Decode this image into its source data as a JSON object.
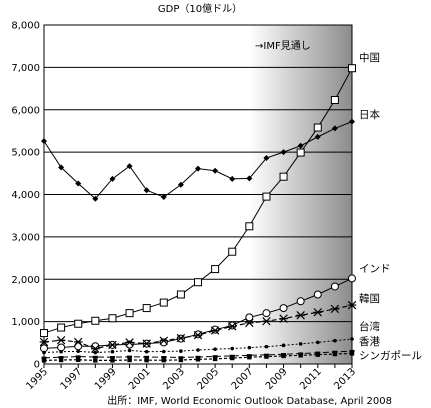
{
  "chart_data": {
    "type": "line",
    "title": "GDP（10億ドル）",
    "source": "出所：IMF, World Economic Outlook Database, April 2008",
    "forecast_label": "→IMF見通し",
    "forecast_start": 2007,
    "ylim": [
      0,
      8000
    ],
    "yticks": [
      0,
      1000,
      2000,
      3000,
      4000,
      5000,
      6000,
      7000,
      8000
    ],
    "ytick_labels": [
      "0",
      "1,000",
      "2,000",
      "3,000",
      "4,000",
      "5,000",
      "6,000",
      "7,000",
      "8,000"
    ],
    "xlim": [
      1995,
      2013
    ],
    "xtick_labels": [
      "1995",
      "1997",
      "1999",
      "2001",
      "2003",
      "2005",
      "2007",
      "2009",
      "2011",
      "2013"
    ],
    "x": [
      1995,
      1996,
      1997,
      1998,
      1999,
      2000,
      2001,
      2002,
      2003,
      2004,
      2005,
      2006,
      2007,
      2008,
      2009,
      2010,
      2011,
      2012,
      2013
    ],
    "grid": true,
    "series": [
      {
        "name": "中国",
        "marker": "square",
        "values": [
          730,
          860,
          950,
          1020,
          1080,
          1200,
          1320,
          1450,
          1640,
          1930,
          2240,
          2650,
          3250,
          3950,
          4420,
          4990,
          5580,
          6230,
          6980
        ]
      },
      {
        "name": "日本",
        "marker": "diamond",
        "values": [
          5260,
          4640,
          4260,
          3900,
          4370,
          4670,
          4100,
          3940,
          4230,
          4610,
          4560,
          4370,
          4380,
          4860,
          5000,
          5150,
          5360,
          5560,
          5720
        ]
      },
      {
        "name": "インド",
        "marker": "circle",
        "values": [
          370,
          390,
          420,
          420,
          450,
          460,
          480,
          510,
          600,
          700,
          810,
          910,
          1100,
          1200,
          1320,
          1480,
          1640,
          1830,
          2020
        ]
      },
      {
        "name": "韓国",
        "marker": "star",
        "values": [
          520,
          560,
          520,
          360,
          450,
          510,
          480,
          550,
          610,
          680,
          790,
          890,
          970,
          1010,
          1070,
          1150,
          1220,
          1300,
          1390
        ]
      },
      {
        "name": "台湾",
        "marker": "dot",
        "values": [
          270,
          290,
          300,
          270,
          290,
          320,
          290,
          295,
          305,
          330,
          350,
          365,
          385,
          410,
          440,
          475,
          510,
          550,
          590
        ]
      },
      {
        "name": "香港",
        "marker": "dash",
        "values": [
          145,
          160,
          175,
          165,
          160,
          170,
          165,
          160,
          155,
          165,
          180,
          190,
          205,
          215,
          230,
          245,
          265,
          285,
          305
        ]
      },
      {
        "name": "シンガポール",
        "marker": "filled-square",
        "values": [
          85,
          95,
          100,
          85,
          85,
          95,
          90,
          90,
          95,
          110,
          120,
          140,
          160,
          175,
          190,
          205,
          220,
          235,
          250
        ]
      }
    ]
  }
}
